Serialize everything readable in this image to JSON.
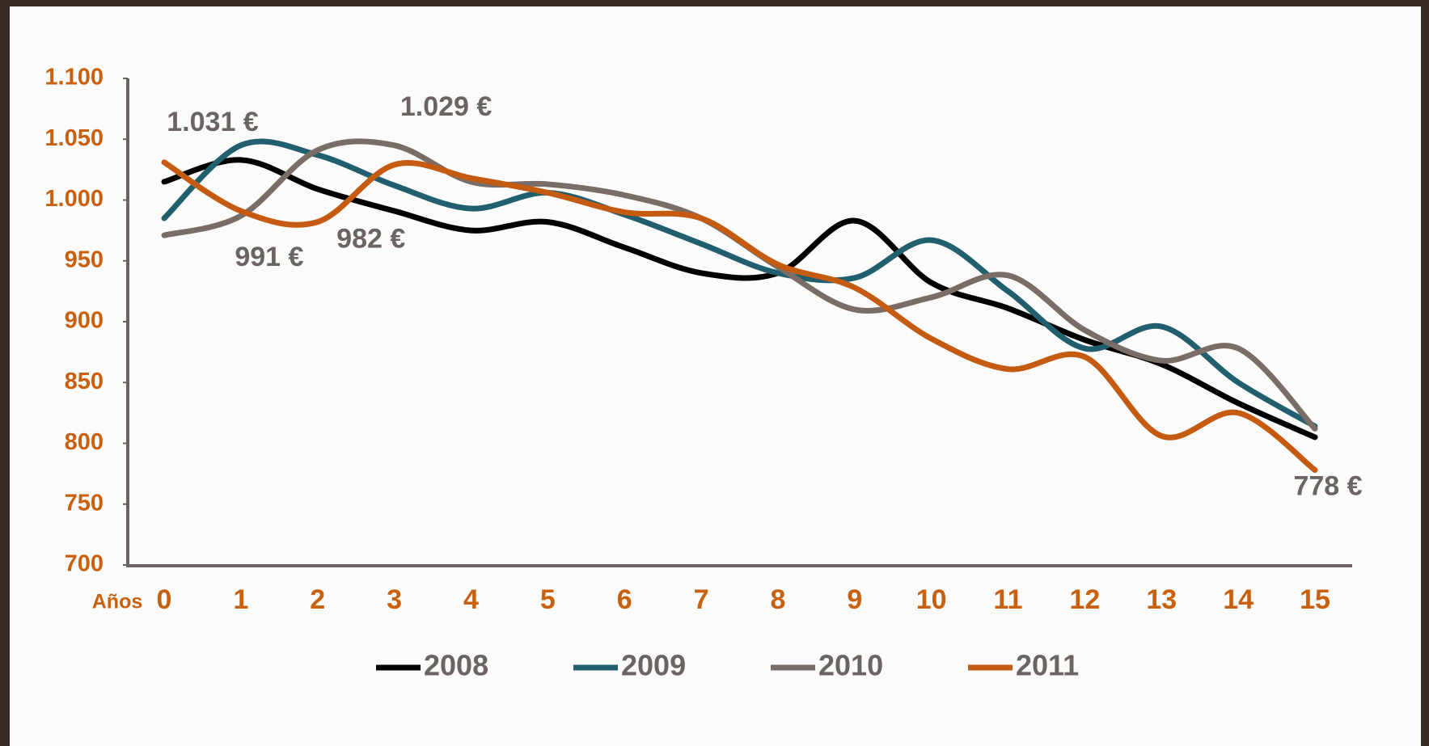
{
  "chart_data": {
    "type": "line",
    "x_label": "Años",
    "categories": [
      "0",
      "1",
      "2",
      "3",
      "4",
      "5",
      "6",
      "7",
      "8",
      "9",
      "10",
      "11",
      "12",
      "13",
      "14",
      "15"
    ],
    "ylim": [
      700,
      1100
    ],
    "yticks": [
      700,
      750,
      800,
      850,
      900,
      950,
      {
        "value": 1000,
        "label": "1.000"
      },
      {
        "value": 1050,
        "label": "1.050"
      },
      {
        "value": 1100,
        "label": "1.100"
      }
    ],
    "series": [
      {
        "name": "2008",
        "color": "#000000",
        "values": [
          1015,
          1033,
          1009,
          991,
          975,
          982,
          961,
          940,
          940,
          983,
          932,
          911,
          885,
          865,
          833,
          805
        ]
      },
      {
        "name": "2009",
        "color": "#215f6e",
        "values": [
          985,
          1045,
          1037,
          1012,
          993,
          1006,
          988,
          964,
          940,
          936,
          967,
          925,
          878,
          896,
          850,
          814
        ]
      },
      {
        "name": "2010",
        "color": "#7a6c66",
        "values": [
          971,
          987,
          1041,
          1045,
          1015,
          1013,
          1004,
          985,
          945,
          910,
          920,
          938,
          893,
          868,
          878,
          812
        ]
      },
      {
        "name": "2011",
        "color": "#c55a11",
        "values": [
          1031,
          991,
          982,
          1029,
          1018,
          1006,
          990,
          985,
          947,
          928,
          886,
          861,
          871,
          806,
          825,
          778
        ],
        "value_labels": [
          "1.031 €",
          "991 €",
          "982 €",
          "1.029 €",
          null,
          null,
          null,
          null,
          null,
          null,
          null,
          null,
          null,
          null,
          null,
          "778 €"
        ]
      }
    ]
  }
}
